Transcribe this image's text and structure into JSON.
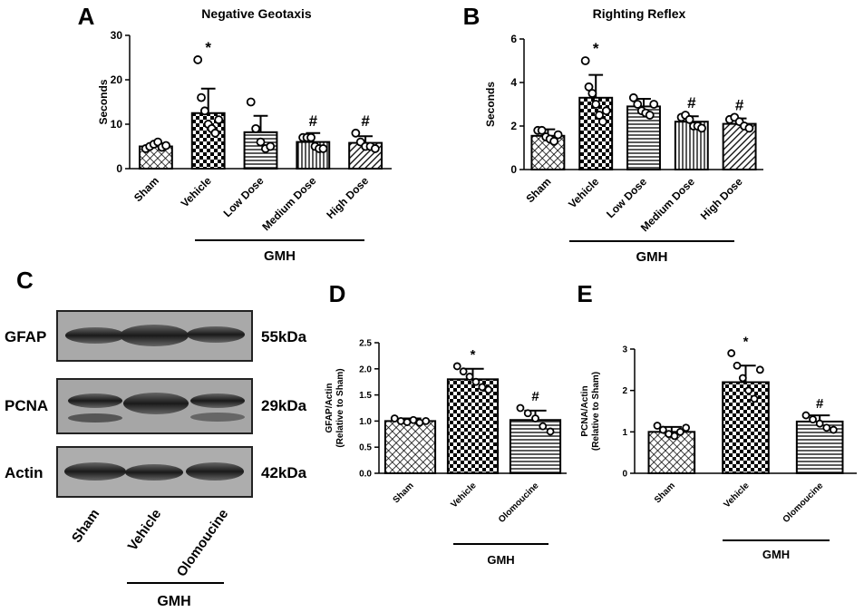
{
  "chart_data": [
    {
      "type": "bar",
      "panel": "A",
      "title": "Negative Geotaxis",
      "ylabel": [
        "Seconds"
      ],
      "categories": [
        "Sham",
        "Vehicle",
        "Low Dose",
        "Medium Dose",
        "High Dose"
      ],
      "values": [
        5,
        12.5,
        8.2,
        6,
        5.8
      ],
      "errors": [
        0.7,
        5.5,
        3.7,
        2,
        1.5
      ],
      "points": [
        [
          4.5,
          5,
          5.5,
          6,
          4.8,
          5.2
        ],
        [
          24.5,
          16,
          13,
          10,
          9,
          8,
          11
        ],
        [
          15,
          9,
          6,
          4.5,
          5
        ],
        [
          7,
          7,
          7,
          5,
          4.5,
          4.5
        ],
        [
          8,
          6,
          5,
          5,
          4.5
        ]
      ],
      "annotations": [
        null,
        "*",
        null,
        "#",
        "#"
      ],
      "patterns": [
        "crosshatch",
        "checker",
        "hlines",
        "vlines",
        "diagonal"
      ],
      "group_label": "GMH",
      "color": "#000000",
      "ylim": [
        0,
        30
      ],
      "yticks": [
        0,
        10,
        20,
        30
      ]
    },
    {
      "type": "bar",
      "panel": "B",
      "title": "Righting Reflex",
      "ylabel": [
        "Seconds"
      ],
      "categories": [
        "Sham",
        "Vehicle",
        "Low Dose",
        "Medium Dose",
        "High Dose"
      ],
      "values": [
        1.55,
        3.3,
        2.9,
        2.2,
        2.1
      ],
      "errors": [
        0.3,
        1.05,
        0.35,
        0.25,
        0.25
      ],
      "points": [
        [
          1.8,
          1.8,
          1.5,
          1.4,
          1.3,
          1.6
        ],
        [
          5,
          3.8,
          3.5,
          3,
          2.5,
          2.2,
          2.7
        ],
        [
          3.3,
          3,
          2.7,
          2.6,
          2.5,
          3.0
        ],
        [
          2.4,
          2.5,
          2.3,
          2.0,
          2.0,
          1.9
        ],
        [
          2.3,
          2.4,
          2.2,
          2.0,
          1.9
        ]
      ],
      "annotations": [
        null,
        "*",
        null,
        "#",
        "#"
      ],
      "patterns": [
        "crosshatch",
        "checker",
        "hlines",
        "vlines",
        "diagonal"
      ],
      "group_label": "GMH",
      "color": "#000000",
      "ylim": [
        0,
        6
      ],
      "yticks": [
        0,
        2,
        4,
        6
      ]
    },
    {
      "type": "bar",
      "panel": "D",
      "ylabel": [
        "GFAP/Actin",
        "(Relative to Sham)"
      ],
      "categories": [
        "Sham",
        "Vehicle",
        "Olomoucine"
      ],
      "values": [
        1.0,
        1.8,
        1.02
      ],
      "errors": [
        0.05,
        0.2,
        0.18
      ],
      "points": [
        [
          1.05,
          1.0,
          0.98,
          1.02,
          0.97,
          1.0
        ],
        [
          2.05,
          1.95,
          1.85,
          1.75,
          1.65,
          1.6
        ],
        [
          1.25,
          1.15,
          1.05,
          0.9,
          0.8
        ]
      ],
      "annotations": [
        null,
        "*",
        "#"
      ],
      "patterns": [
        "crosshatch",
        "checker",
        "hlines"
      ],
      "group_label": "GMH",
      "color": "#000000",
      "ylim": [
        0,
        2.5
      ],
      "yticks": [
        {
          "value": 0,
          "label": "0.0"
        },
        {
          "value": 0.5,
          "label": "0.5"
        },
        {
          "value": 1,
          "label": "1.0"
        },
        {
          "value": 1.5,
          "label": "1.5"
        },
        {
          "value": 2,
          "label": "2.0"
        },
        {
          "value": 2.5,
          "label": "2.5"
        }
      ]
    },
    {
      "type": "bar",
      "panel": "E",
      "ylabel": [
        "PCNA/Actin",
        "(Relative to Sham)"
      ],
      "categories": [
        "Sham",
        "Vehicle",
        "Olomoucine"
      ],
      "values": [
        1.0,
        2.2,
        1.25
      ],
      "errors": [
        0.12,
        0.4,
        0.15
      ],
      "points": [
        [
          1.15,
          1.05,
          0.95,
          0.9,
          1.0,
          1.1
        ],
        [
          2.9,
          2.6,
          2.3,
          2.0,
          1.8,
          2.5
        ],
        [
          1.4,
          1.3,
          1.2,
          1.1,
          1.05
        ]
      ],
      "annotations": [
        null,
        "*",
        "#"
      ],
      "patterns": [
        "crosshatch",
        "checker",
        "hlines"
      ],
      "group_label": "GMH",
      "color": "#000000",
      "ylim": [
        0,
        3
      ],
      "yticks": [
        0,
        1,
        2,
        3
      ]
    }
  ],
  "blot": {
    "panel": "C",
    "rows": [
      {
        "protein": "GFAP",
        "size": "55kDa"
      },
      {
        "protein": "PCNA",
        "size": "29kDa"
      },
      {
        "protein": "Actin",
        "size": "42kDa"
      }
    ],
    "lanes": [
      "Sham",
      "Vehicle",
      "Olomoucine"
    ],
    "group_label": "GMH"
  }
}
